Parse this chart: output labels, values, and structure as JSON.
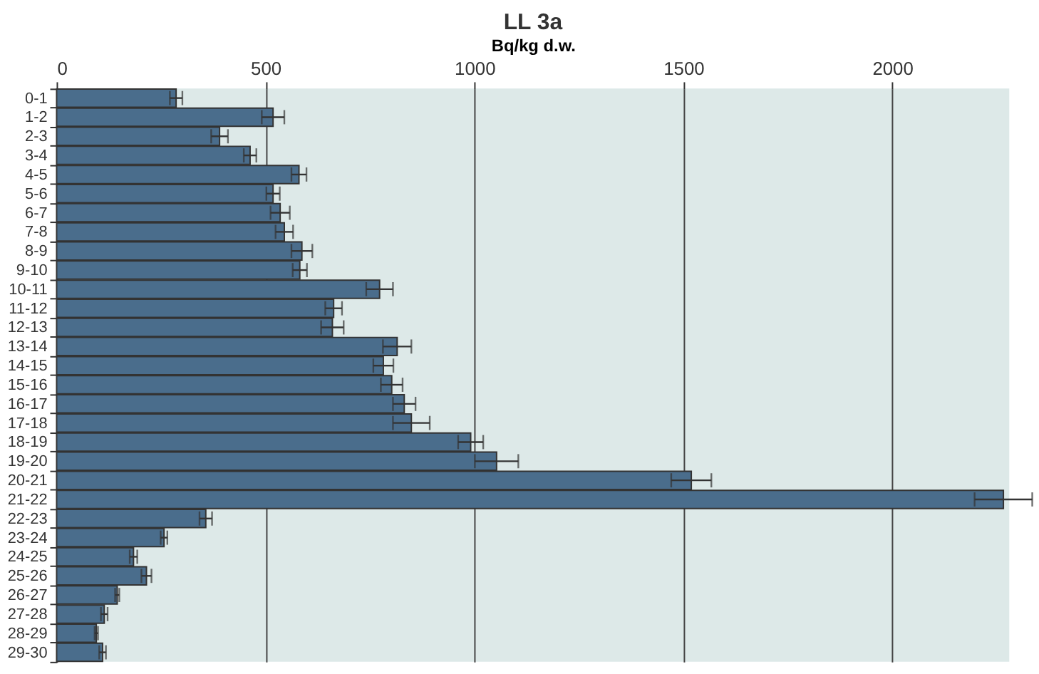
{
  "chart_data": {
    "type": "bar",
    "orientation": "horizontal",
    "title": "LL 3a",
    "xlabel": "Bq/kg d.w.",
    "categories": [
      "0-1",
      "1-2",
      "2-3",
      "3-4",
      "4-5",
      "5-6",
      "6-7",
      "7-8",
      "8-9",
      "9-10",
      "10-11",
      "11-12",
      "12-13",
      "13-14",
      "14-15",
      "15-16",
      "16-17",
      "17-18",
      "18-19",
      "19-20",
      "20-21",
      "21-22",
      "22-23",
      "23-24",
      "24-25",
      "25-26",
      "26-27",
      "27-28",
      "28-29",
      "29-30"
    ],
    "values": [
      286,
      518,
      390,
      463,
      580,
      518,
      535,
      545,
      587,
      582,
      773,
      663,
      660,
      815,
      782,
      802,
      832,
      849,
      991,
      1053,
      1519,
      2266,
      357,
      257,
      184,
      215,
      145,
      114,
      95,
      110
    ],
    "errors": [
      15,
      27,
      20,
      15,
      18,
      16,
      23,
      21,
      25,
      17,
      32,
      20,
      27,
      34,
      24,
      26,
      27,
      44,
      30,
      52,
      48,
      69,
      15,
      8,
      9,
      12,
      5,
      8,
      4,
      8
    ],
    "color": "#4a6d8c",
    "xlim": [
      0,
      2280
    ],
    "xticks": [
      0,
      500,
      1000,
      1500,
      2000
    ],
    "grid": "x"
  }
}
